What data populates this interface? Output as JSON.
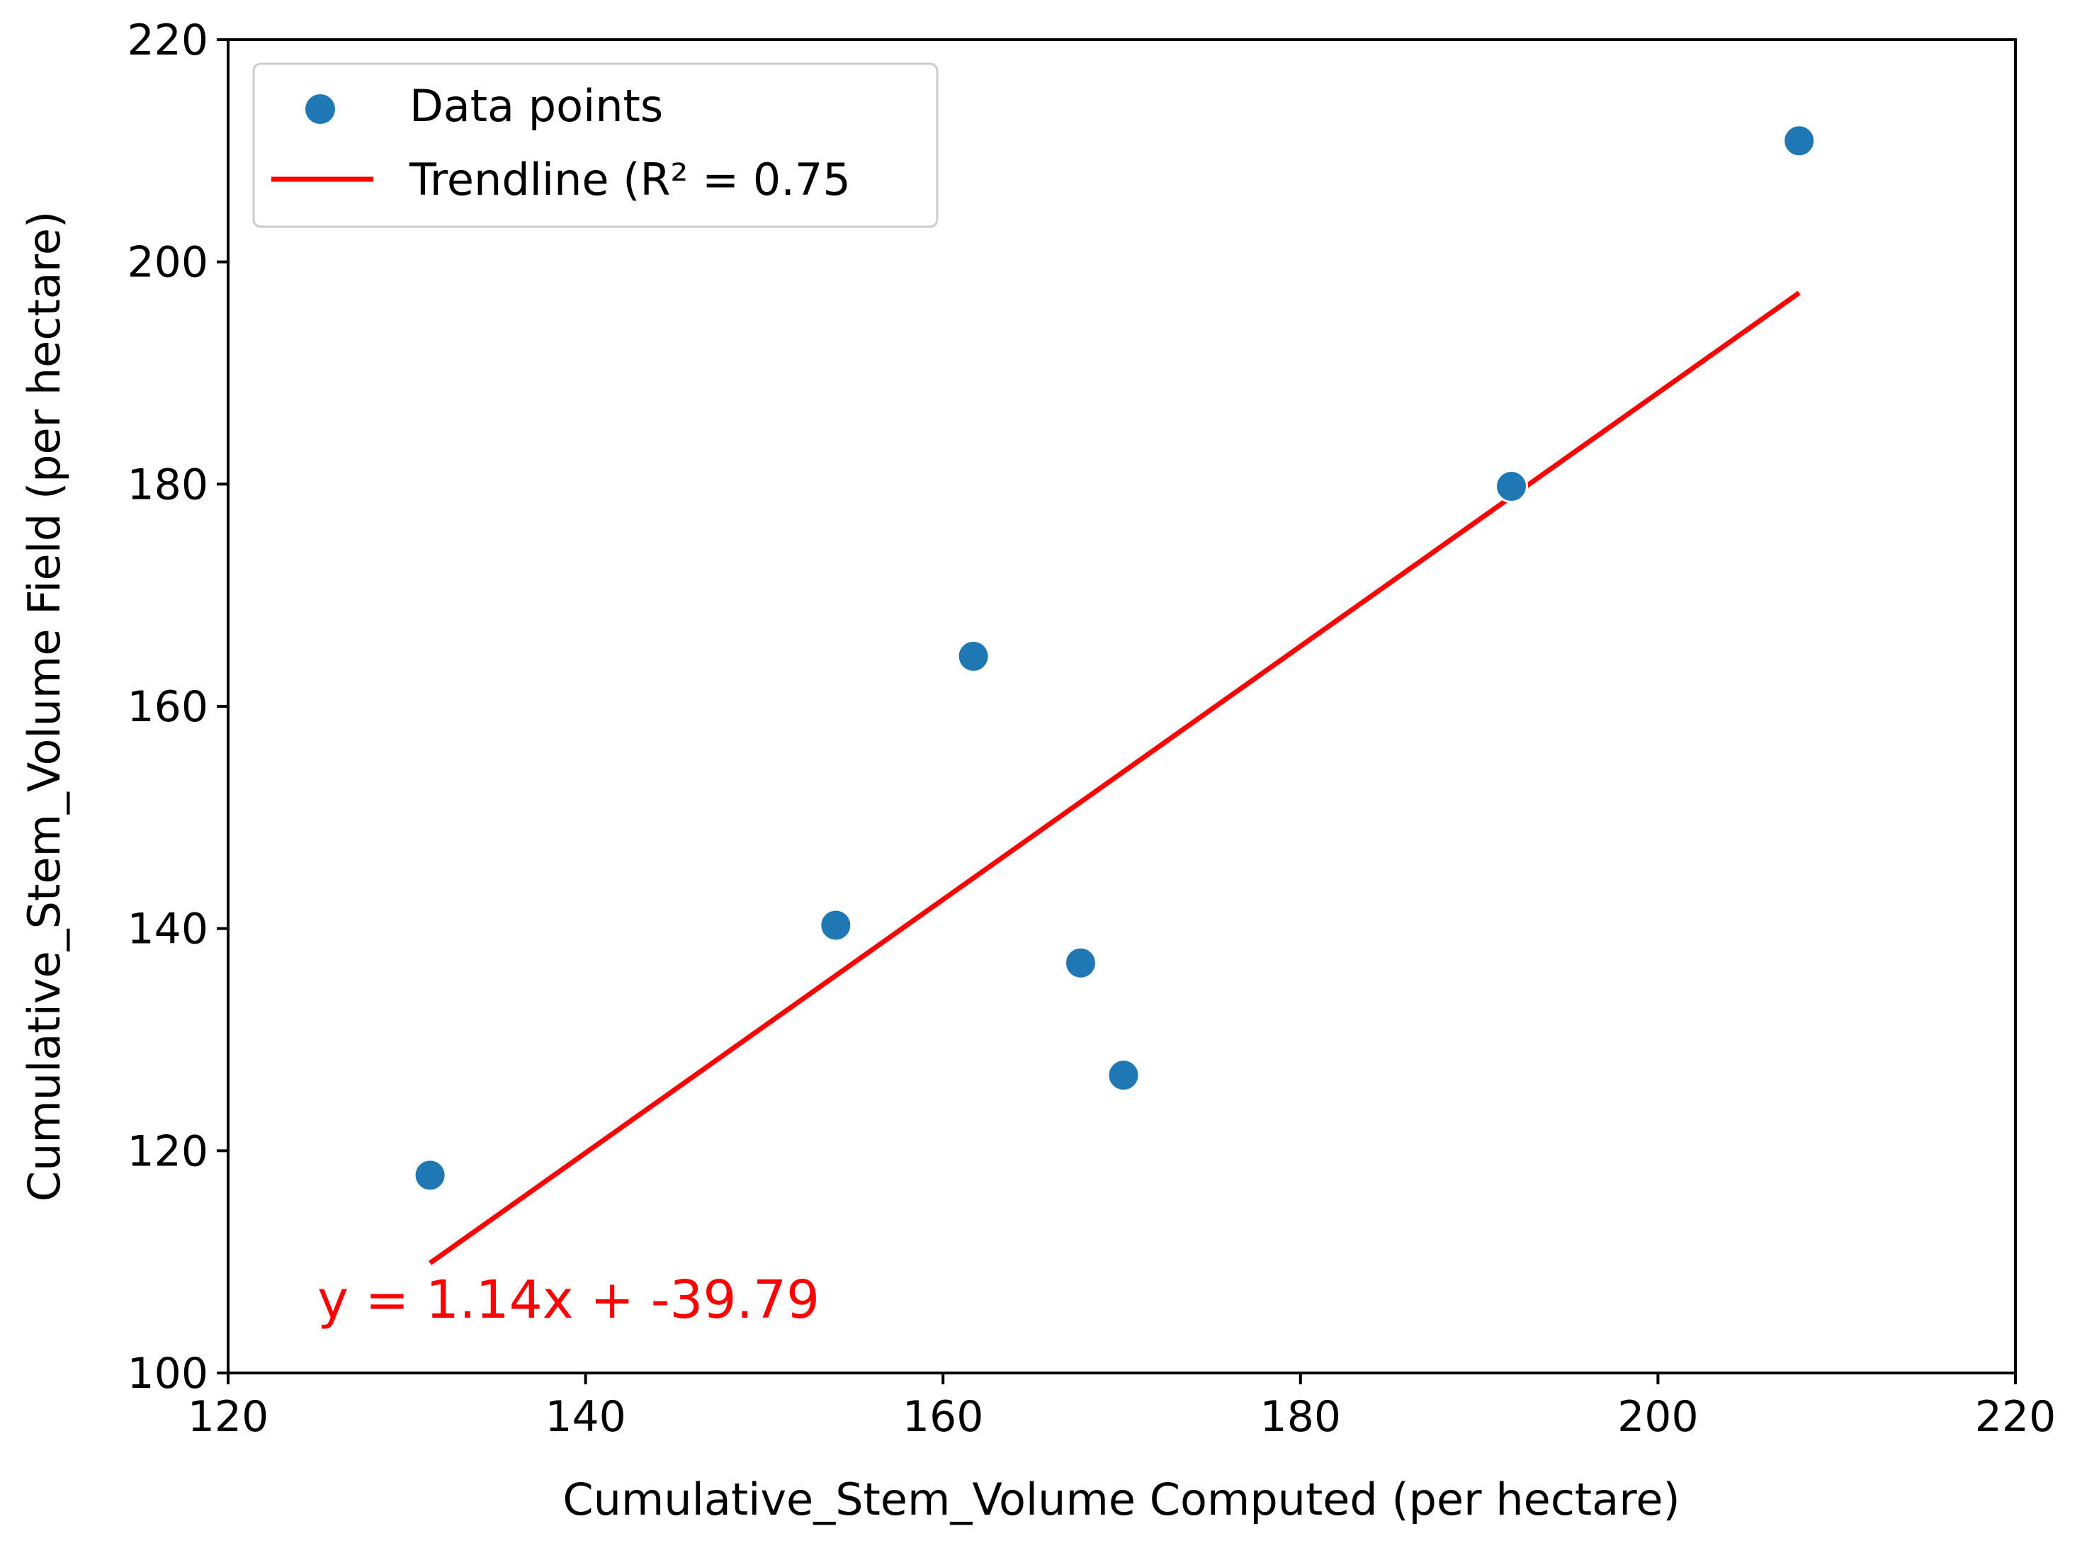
{
  "chart_data": {
    "type": "scatter",
    "xlabel": "Cumulative_Stem_Volume Computed (per hectare)",
    "ylabel": "Cumulative_Stem_Volume Field (per hectare)",
    "xlim": [
      120,
      220
    ],
    "ylim": [
      100,
      220
    ],
    "x_ticks": [
      120,
      140,
      160,
      180,
      200,
      220
    ],
    "y_ticks": [
      100,
      120,
      140,
      160,
      180,
      200,
      220
    ],
    "grid": false,
    "legend_position": "top-left",
    "series": [
      {
        "name": "Data points",
        "type": "scatter",
        "color": "#1f77b4",
        "points": [
          {
            "x": 131.3,
            "y": 117.8
          },
          {
            "x": 154.0,
            "y": 140.3
          },
          {
            "x": 161.7,
            "y": 164.5
          },
          {
            "x": 167.7,
            "y": 136.9
          },
          {
            "x": 170.1,
            "y": 126.8
          },
          {
            "x": 191.8,
            "y": 179.8
          },
          {
            "x": 207.9,
            "y": 210.9
          }
        ]
      },
      {
        "name": "Trendline (R² = 0.75",
        "type": "line",
        "color": "#ff0000",
        "slope": 1.14,
        "intercept": -39.79,
        "x_range": [
          131.3,
          207.9
        ]
      }
    ],
    "annotations": [
      {
        "text": "y = 1.14x + -39.79",
        "x": 125,
        "y": 106.5,
        "color": "#ff0000"
      }
    ]
  }
}
